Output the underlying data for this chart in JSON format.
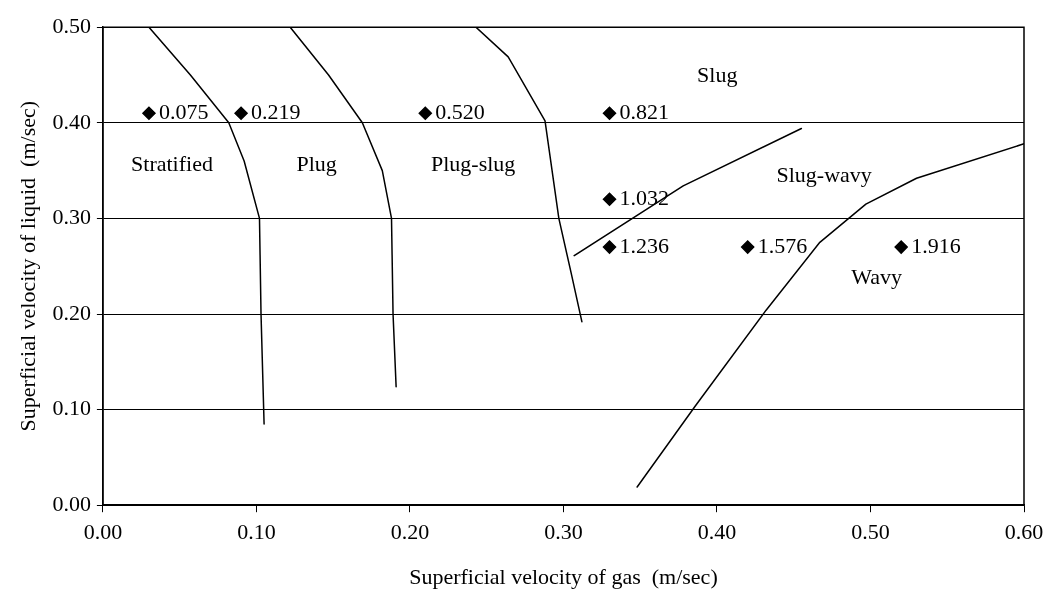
{
  "chart_data": {
    "type": "scatter",
    "xlabel": "Superficial velocity of gas  (m/sec)",
    "ylabel": "Superficial velocity of liquid  (m/sec)",
    "xlim": [
      0,
      0.6
    ],
    "xticks": [
      {
        "value": 0,
        "label": "0.00"
      },
      {
        "value": 0.1,
        "label": "0.10"
      },
      {
        "value": 0.2,
        "label": "0.20"
      },
      {
        "value": 0.3,
        "label": "0.30"
      },
      {
        "value": 0.4,
        "label": "0.40"
      },
      {
        "value": 0.5,
        "label": "0.50"
      },
      {
        "value": 0.6,
        "label": "0.60"
      }
    ],
    "ylim": [
      0,
      0.5
    ],
    "yticks": [
      {
        "value": 0,
        "label": "0.00"
      },
      {
        "value": 0.1,
        "label": "0.10"
      },
      {
        "value": 0.2,
        "label": "0.20"
      },
      {
        "value": 0.3,
        "label": "0.30"
      },
      {
        "value": 0.4,
        "label": "0.40"
      },
      {
        "value": 0.5,
        "label": "0.50"
      }
    ],
    "grid": "y",
    "legend": false,
    "series": [
      {
        "marker": "diamond",
        "color": "#000000",
        "x": [
          0.03,
          0.09,
          0.21,
          0.33,
          0.33,
          0.33,
          0.42,
          0.52
        ],
        "values": [
          0.41,
          0.41,
          0.41,
          0.41,
          0.32,
          0.27,
          0.27,
          0.27
        ]
      },
      {
        "type": "line",
        "marker": "none",
        "color": "#000000",
        "x": [
          0.03,
          0.057,
          0.082,
          0.092,
          0.102,
          0.103,
          0.105
        ],
        "values": [
          0.5,
          0.45,
          0.4,
          0.36,
          0.3,
          0.2,
          0.085
        ]
      },
      {
        "type": "line",
        "marker": "none",
        "color": "#000000",
        "x": [
          0.122,
          0.147,
          0.169,
          0.182,
          0.188,
          0.189,
          0.191
        ],
        "values": [
          0.5,
          0.45,
          0.4,
          0.35,
          0.3,
          0.2,
          0.124
        ]
      },
      {
        "type": "line",
        "marker": "none",
        "color": "#000000",
        "x": [
          0.243,
          0.264,
          0.288,
          0.297,
          0.305,
          0.312
        ],
        "values": [
          0.5,
          0.469,
          0.402,
          0.3,
          0.243,
          0.192
        ]
      },
      {
        "type": "line",
        "marker": "none",
        "color": "#000000",
        "x": [
          0.307,
          0.378,
          0.455
        ],
        "values": [
          0.261,
          0.334,
          0.394
        ]
      },
      {
        "type": "line",
        "marker": "none",
        "color": "#000000",
        "x": [
          0.348,
          0.386,
          0.432,
          0.467,
          0.497,
          0.53,
          0.6
        ],
        "values": [
          0.019,
          0.104,
          0.204,
          0.275,
          0.315,
          0.342,
          0.378
        ]
      }
    ],
    "annotations": [
      {
        "text": "0.075",
        "x": 0.03,
        "y": 0.41
      },
      {
        "text": "0.219",
        "x": 0.09,
        "y": 0.41
      },
      {
        "text": "0.520",
        "x": 0.21,
        "y": 0.41
      },
      {
        "text": "0.821",
        "x": 0.33,
        "y": 0.41
      },
      {
        "text": "1.032",
        "x": 0.33,
        "y": 0.32
      },
      {
        "text": "1.236",
        "x": 0.33,
        "y": 0.27
      },
      {
        "text": "1.576",
        "x": 0.42,
        "y": 0.27
      },
      {
        "text": "1.916",
        "x": 0.52,
        "y": 0.27
      },
      "Stratified",
      "Plug",
      "Plug-slug",
      "Slug",
      "Slug-wavy",
      "Wavy"
    ]
  }
}
